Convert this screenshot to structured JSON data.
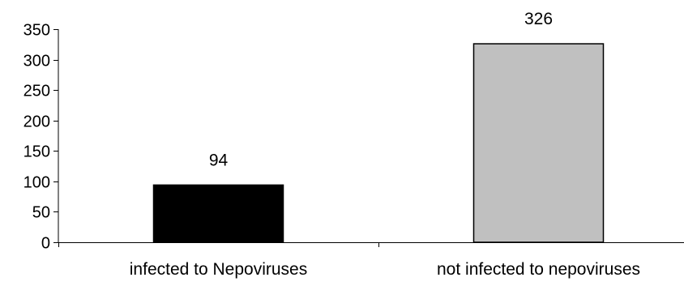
{
  "chart_data": {
    "type": "bar",
    "title": "",
    "xlabel": "",
    "ylabel": "",
    "categories": [
      "infected to Nepoviruses",
      "not infected to nepoviruses"
    ],
    "values": [
      94,
      326
    ],
    "data_labels": [
      "94",
      "326"
    ],
    "ylim": [
      0,
      350
    ],
    "y_ticks": [
      0,
      50,
      100,
      150,
      200,
      250,
      300,
      350
    ],
    "bar_colors": [
      "#000000",
      "#c0c0c0"
    ],
    "bar_outline": "#000000",
    "grid": false,
    "legend": "none"
  }
}
